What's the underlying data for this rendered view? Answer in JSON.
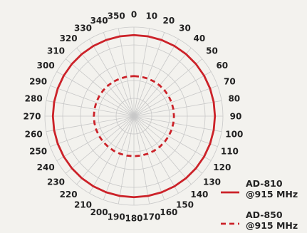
{
  "chart_data": {
    "type": "polar-line",
    "angle_unit": "degrees",
    "angle_ticks": [
      0,
      10,
      20,
      30,
      40,
      50,
      60,
      70,
      80,
      90,
      100,
      110,
      120,
      130,
      140,
      150,
      160,
      170,
      180,
      190,
      200,
      210,
      220,
      230,
      240,
      250,
      260,
      270,
      280,
      290,
      300,
      310,
      320,
      330,
      340,
      350
    ],
    "angle_tick_labels": [
      "0",
      "10",
      "20",
      "30",
      "40",
      "50",
      "60",
      "70",
      "80",
      "90",
      "100",
      "110",
      "120",
      "130",
      "140",
      "150",
      "160",
      "170",
      "180",
      "190",
      "200",
      "210",
      "220",
      "230",
      "240",
      "250",
      "260",
      "270",
      "280",
      "290",
      "300",
      "310",
      "320",
      "330",
      "340",
      "350"
    ],
    "direction": "clockwise",
    "zero_location": "top",
    "radial_rings": 5,
    "radial_range": [
      0,
      1
    ],
    "radial_tick_labels_visible": false,
    "grid": true,
    "series": [
      {
        "name": "AD-810 @915 MHz",
        "legend_lines": [
          "AD-810",
          "@915 MHz"
        ],
        "style": "solid",
        "color": "#cc2229",
        "angles": [
          0,
          10,
          20,
          30,
          40,
          50,
          60,
          70,
          80,
          90,
          100,
          110,
          120,
          130,
          140,
          150,
          160,
          170,
          180,
          190,
          200,
          210,
          220,
          230,
          240,
          250,
          260,
          270,
          280,
          290,
          300,
          310,
          320,
          330,
          340,
          350
        ],
        "values": [
          0.91,
          0.91,
          0.91,
          0.91,
          0.91,
          0.91,
          0.91,
          0.91,
          0.91,
          0.91,
          0.91,
          0.91,
          0.91,
          0.91,
          0.91,
          0.91,
          0.91,
          0.91,
          0.91,
          0.91,
          0.91,
          0.91,
          0.91,
          0.91,
          0.91,
          0.91,
          0.91,
          0.91,
          0.91,
          0.91,
          0.91,
          0.91,
          0.91,
          0.91,
          0.91,
          0.91
        ]
      },
      {
        "name": "AD-850 @915 MHz",
        "legend_lines": [
          "AD-850",
          "@915 MHz"
        ],
        "style": "dashed",
        "color": "#cc2229",
        "angles": [
          0,
          10,
          20,
          30,
          40,
          50,
          60,
          70,
          80,
          90,
          100,
          110,
          120,
          130,
          140,
          150,
          160,
          170,
          180,
          190,
          200,
          210,
          220,
          230,
          240,
          250,
          260,
          270,
          280,
          290,
          300,
          310,
          320,
          330,
          340,
          350
        ],
        "values": [
          0.45,
          0.45,
          0.45,
          0.45,
          0.45,
          0.45,
          0.45,
          0.45,
          0.45,
          0.45,
          0.45,
          0.45,
          0.45,
          0.45,
          0.45,
          0.45,
          0.45,
          0.45,
          0.45,
          0.45,
          0.45,
          0.45,
          0.45,
          0.45,
          0.45,
          0.45,
          0.45,
          0.45,
          0.45,
          0.45,
          0.45,
          0.45,
          0.45,
          0.45,
          0.45,
          0.45
        ]
      }
    ],
    "legend_position": "bottom-right",
    "background_color": "#f3f2ee",
    "grid_color": "#c8c8c8"
  }
}
